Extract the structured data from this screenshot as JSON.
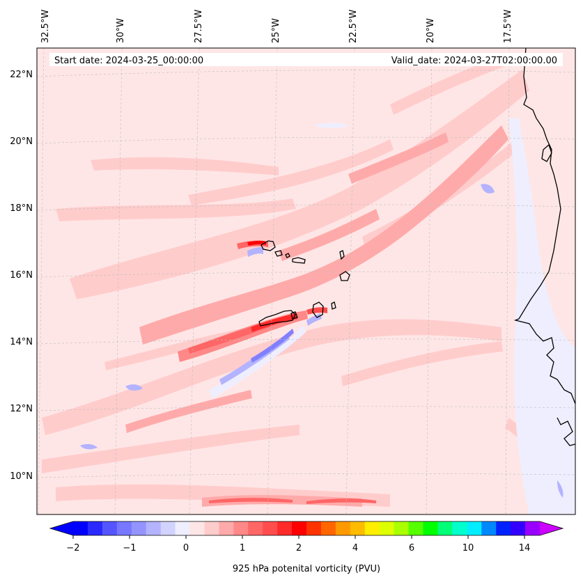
{
  "header": {
    "start_date": "Start date: 2024-03-25_00:00:00",
    "valid_date": "Valid_date: 2024-03-27T02:00:00.00"
  },
  "map": {
    "longitude_labels": [
      "32.5°W",
      "30°W",
      "27.5°W",
      "25°W",
      "22.5°W",
      "20°W",
      "17.5°W"
    ],
    "latitude_labels": [
      "22°N",
      "20°N",
      "18°N",
      "16°N",
      "14°N",
      "12°N",
      "10°N"
    ],
    "colors": {
      "background": "#ffe6e6",
      "weak_positive": "#ffcccc",
      "moderate_positive": "#ffaaaa",
      "strong_positive": "#ff6666",
      "very_strong": "#ff0000",
      "weak_negative": "#eeeeff",
      "moderate_negative": "#b3b3ff",
      "strong_negative": "#8080ff",
      "coast": "#000000",
      "grid": "#bbbbbb"
    }
  },
  "colorbar": {
    "label": "925 hPa potenital vorticity (PVU)",
    "tick_labels": [
      "−2",
      "−1",
      "0",
      "1",
      "2",
      "4",
      "6",
      "10",
      "14"
    ],
    "colors": [
      "#0000ff",
      "#2a2aff",
      "#5555ff",
      "#7777ff",
      "#9494ff",
      "#b3b3ff",
      "#d2d2ff",
      "#eeeeff",
      "#ffe6e6",
      "#ffcccc",
      "#ffaaaa",
      "#ff8888",
      "#ff6666",
      "#ff4d4d",
      "#ff2a2a",
      "#ff0000",
      "#ff3300",
      "#ff6600",
      "#ff9900",
      "#ffbb00",
      "#ffee00",
      "#ddff00",
      "#aaff00",
      "#55ff00",
      "#00ff00",
      "#00ff77",
      "#00ffcc",
      "#00eeff",
      "#0088ff",
      "#0022ff",
      "#3300ff",
      "#9900ff"
    ],
    "extend_low_color": "#0000ff",
    "extend_high_color": "#cc00ff"
  }
}
